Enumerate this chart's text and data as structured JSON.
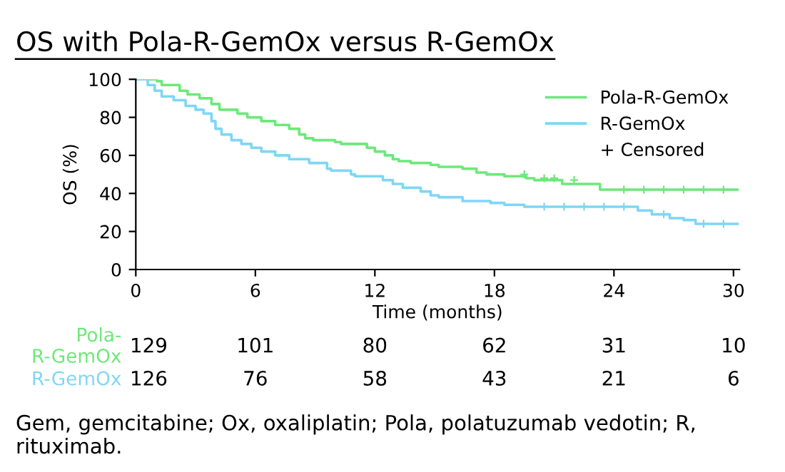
{
  "chart_data": {
    "type": "step",
    "title": "OS with Pola-R-GemOx versus R-GemOx",
    "xlabel": "Time (months)",
    "ylabel": "OS (%)",
    "xlim": [
      0,
      30.3
    ],
    "ylim": [
      0,
      100
    ],
    "xticks": [
      0,
      6,
      12,
      18,
      24,
      30
    ],
    "yticks": [
      0,
      20,
      40,
      60,
      80,
      100
    ],
    "grid": false,
    "legend": "top right",
    "series": [
      {
        "name": "Pola-R-GemOx",
        "color": "#6ee87a",
        "x": [
          0,
          1.06,
          1.3,
          2.2,
          2.6,
          3.2,
          3.8,
          4.2,
          4.4,
          5.1,
          5.6,
          6.3,
          7,
          7.7,
          8.2,
          8.5,
          8.9,
          10.0,
          10.3,
          11.6,
          12.0,
          12.5,
          12.9,
          13.2,
          13.8,
          14.8,
          15.2,
          16.4,
          17.1,
          17.6,
          18.5,
          19.6,
          20,
          21.4,
          23.3,
          24.0,
          30.2
        ],
        "values": [
          100,
          99,
          97,
          94,
          92,
          90,
          87,
          84,
          84,
          82,
          80,
          78,
          76,
          74,
          71,
          69,
          68,
          67,
          66,
          64,
          62,
          60,
          58,
          57,
          56,
          55,
          54,
          53,
          51,
          50,
          49,
          48,
          47,
          45,
          42,
          42,
          42
        ]
      },
      {
        "name": "R-GemOx",
        "color": "#7fd6f5",
        "x": [
          0,
          0.6,
          0.95,
          1.3,
          1.9,
          2.5,
          3.0,
          3.4,
          3.8,
          4.0,
          4.3,
          4.8,
          5.3,
          5.8,
          6.3,
          7,
          7.7,
          8.7,
          9.6,
          9.8,
          10.8,
          11,
          12.4,
          12.9,
          13.4,
          14.3,
          14.8,
          15.2,
          16.4,
          17.8,
          18.5,
          19.5,
          20.2,
          25.2,
          25.9,
          26.8,
          27.5,
          28.1,
          30.2
        ],
        "values": [
          100,
          97,
          94,
          91,
          89,
          86,
          84,
          82,
          78,
          74,
          71,
          68,
          66,
          64,
          62,
          60,
          58,
          56,
          53,
          52,
          50,
          49,
          47,
          45,
          43,
          41,
          39,
          38,
          36,
          35,
          34,
          33,
          33,
          31,
          29,
          27,
          26,
          24,
          24
        ]
      },
      {
        "name": "+ Censored",
        "type": "scatter",
        "marker": "cross",
        "color": "#000000",
        "x": [
          19.5,
          20.5,
          21,
          22,
          24.5,
          25.5,
          26.5,
          27.5,
          28.5,
          29.5,
          20.5,
          21.5,
          22.5,
          23.5,
          24.5,
          26.5,
          28.5,
          29.5
        ],
        "values": [
          50,
          48,
          48,
          47,
          42,
          42,
          42,
          42,
          42,
          42,
          33,
          33,
          33,
          33,
          33,
          29,
          24,
          24
        ],
        "colors": [
          "#6ee87a",
          "#6ee87a",
          "#6ee87a",
          "#6ee87a",
          "#6ee87a",
          "#6ee87a",
          "#6ee87a",
          "#6ee87a",
          "#6ee87a",
          "#6ee87a",
          "#7fd6f5",
          "#7fd6f5",
          "#7fd6f5",
          "#7fd6f5",
          "#7fd6f5",
          "#7fd6f5",
          "#7fd6f5",
          "#7fd6f5"
        ]
      }
    ],
    "annotations": [
      "Gem, gemcitabine; Ox, oxaliplatin; Pola, polatuzumab vedotin; R, rituximab.",
      "Pola-\nR-GemOx",
      "129",
      "101",
      "80",
      "62",
      "31",
      "10",
      "R-GemOx",
      "126",
      "76",
      "58",
      "43",
      "21",
      "6"
    ]
  }
}
